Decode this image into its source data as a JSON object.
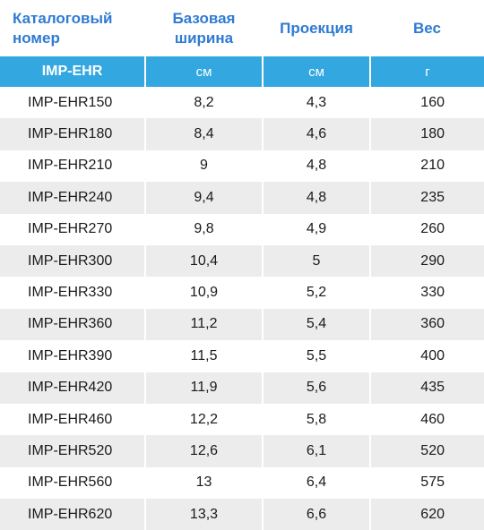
{
  "header": {
    "catalog_line1": "Каталоговый",
    "catalog_line2": "номер",
    "width_line1": "Базовая",
    "width_line2": "ширина",
    "projection": "Проекция",
    "weight": "Вес"
  },
  "units": {
    "model": "IMP-EHR",
    "width": "см",
    "projection": "см",
    "weight": "г"
  },
  "rows": [
    {
      "model": "IMP-EHR150",
      "width": "8,2",
      "projection": "4,3",
      "weight": "160"
    },
    {
      "model": "IMP-EHR180",
      "width": "8,4",
      "projection": "4,6",
      "weight": "180"
    },
    {
      "model": "IMP-EHR210",
      "width": "9",
      "projection": "4,8",
      "weight": "210"
    },
    {
      "model": "IMP-EHR240",
      "width": "9,4",
      "projection": "4,8",
      "weight": "235"
    },
    {
      "model": "IMP-EHR270",
      "width": "9,8",
      "projection": "4,9",
      "weight": "260"
    },
    {
      "model": "IMP-EHR300",
      "width": "10,4",
      "projection": "5",
      "weight": "290"
    },
    {
      "model": "IMP-EHR330",
      "width": "10,9",
      "projection": "5,2",
      "weight": "330"
    },
    {
      "model": "IMP-EHR360",
      "width": "11,2",
      "projection": "5,4",
      "weight": "360"
    },
    {
      "model": "IMP-EHR390",
      "width": "11,5",
      "projection": "5,5",
      "weight": "400"
    },
    {
      "model": "IMP-EHR420",
      "width": "11,9",
      "projection": "5,6",
      "weight": "435"
    },
    {
      "model": "IMP-EHR460",
      "width": "12,2",
      "projection": "5,8",
      "weight": "460"
    },
    {
      "model": "IMP-EHR520",
      "width": "12,6",
      "projection": "6,1",
      "weight": "520"
    },
    {
      "model": "IMP-EHR560",
      "width": "13",
      "projection": "6,4",
      "weight": "575"
    },
    {
      "model": "IMP-EHR620",
      "width": "13,3",
      "projection": "6,6",
      "weight": "620"
    }
  ],
  "colors": {
    "header_text": "#2f7bd2",
    "unit_row_bg": "#33a7e0",
    "stripe_bg": "#ececec"
  }
}
